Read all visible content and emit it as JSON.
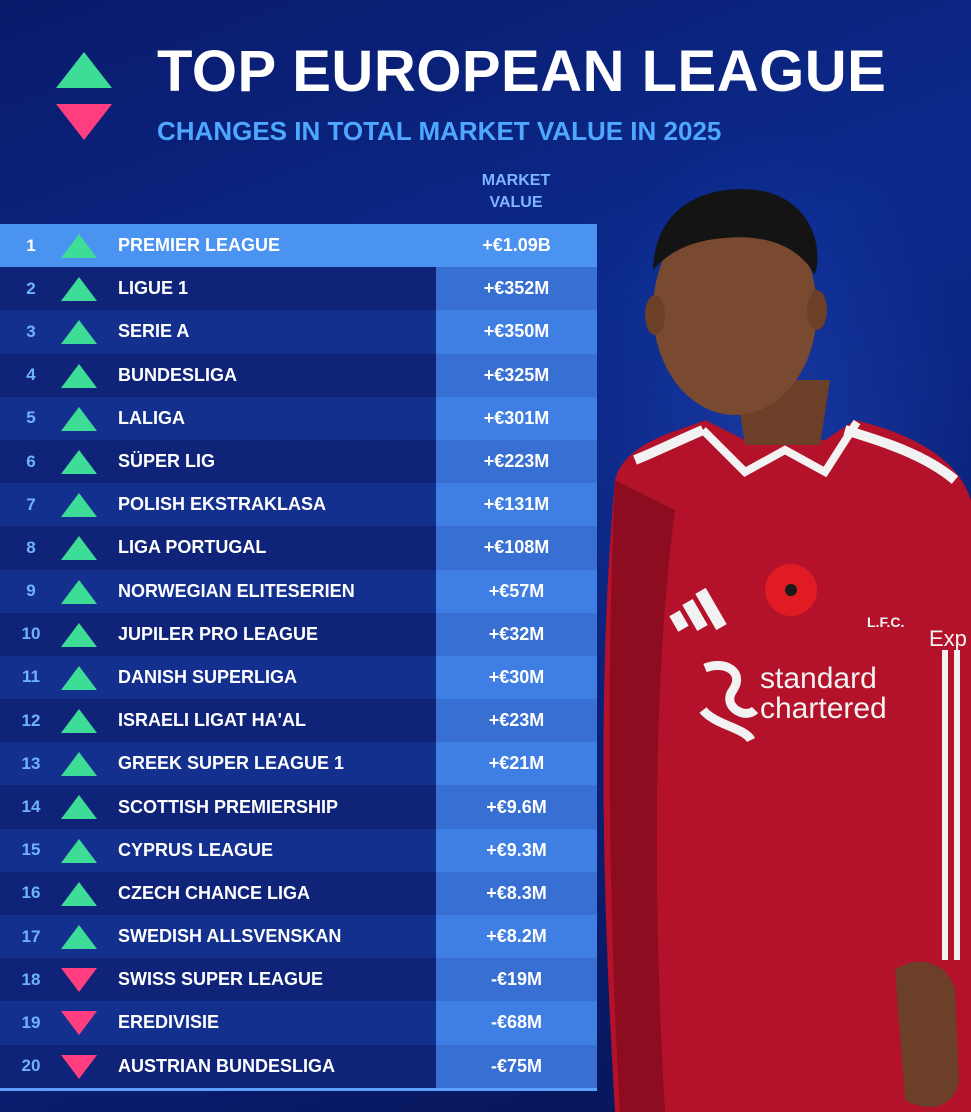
{
  "header": {
    "title": "TOP EUROPEAN LEAGUE",
    "subtitle": "CHANGES IN TOTAL MARKET VALUE IN 2025",
    "column_header_line1": "MARKET",
    "column_header_line2": "VALUE"
  },
  "colors": {
    "up": "#3ddc97",
    "down": "#ff3d7f",
    "accent": "#4fa8ff",
    "highlight_row": "#4b93f0"
  },
  "rows": [
    {
      "rank": "1",
      "trend": "up",
      "league": "PREMIER LEAGUE",
      "value": "+€1.09B"
    },
    {
      "rank": "2",
      "trend": "up",
      "league": "LIGUE 1",
      "value": "+€352M"
    },
    {
      "rank": "3",
      "trend": "up",
      "league": "SERIE A",
      "value": "+€350M"
    },
    {
      "rank": "4",
      "trend": "up",
      "league": "BUNDESLIGA",
      "value": "+€325M"
    },
    {
      "rank": "5",
      "trend": "up",
      "league": "LALIGA",
      "value": "+€301M"
    },
    {
      "rank": "6",
      "trend": "up",
      "league": "SÜPER LIG",
      "value": "+€223M"
    },
    {
      "rank": "7",
      "trend": "up",
      "league": "POLISH EKSTRAKLASA",
      "value": "+€131M"
    },
    {
      "rank": "8",
      "trend": "up",
      "league": "LIGA PORTUGAL",
      "value": "+€108M"
    },
    {
      "rank": "9",
      "trend": "up",
      "league": "NORWEGIAN ELITESERIEN",
      "value": "+€57M"
    },
    {
      "rank": "10",
      "trend": "up",
      "league": "JUPILER PRO LEAGUE",
      "value": "+€32M"
    },
    {
      "rank": "11",
      "trend": "up",
      "league": "DANISH SUPERLIGA",
      "value": "+€30M"
    },
    {
      "rank": "12",
      "trend": "up",
      "league": "ISRAELI LIGAT HA'AL",
      "value": "+€23M"
    },
    {
      "rank": "13",
      "trend": "up",
      "league": "GREEK SUPER LEAGUE 1",
      "value": "+€21M"
    },
    {
      "rank": "14",
      "trend": "up",
      "league": "SCOTTISH PREMIERSHIP",
      "value": "+€9.6M"
    },
    {
      "rank": "15",
      "trend": "up",
      "league": "CYPRUS LEAGUE",
      "value": "+€9.3M"
    },
    {
      "rank": "16",
      "trend": "up",
      "league": "CZECH CHANCE LIGA",
      "value": "+€8.3M"
    },
    {
      "rank": "17",
      "trend": "up",
      "league": "SWEDISH ALLSVENSKAN",
      "value": "+€8.2M"
    },
    {
      "rank": "18",
      "trend": "down",
      "league": "SWISS SUPER LEAGUE",
      "value": "-€19M"
    },
    {
      "rank": "19",
      "trend": "down",
      "league": "EREDIVISIE",
      "value": "-€68M"
    },
    {
      "rank": "20",
      "trend": "down",
      "league": "AUSTRIAN BUNDESLIGA",
      "value": "-€75M"
    }
  ],
  "player": {
    "sponsor_line1": "standard",
    "sponsor_line2": "chartered",
    "crest_text": "L.F.C.",
    "sleeve_text": "Exp"
  }
}
